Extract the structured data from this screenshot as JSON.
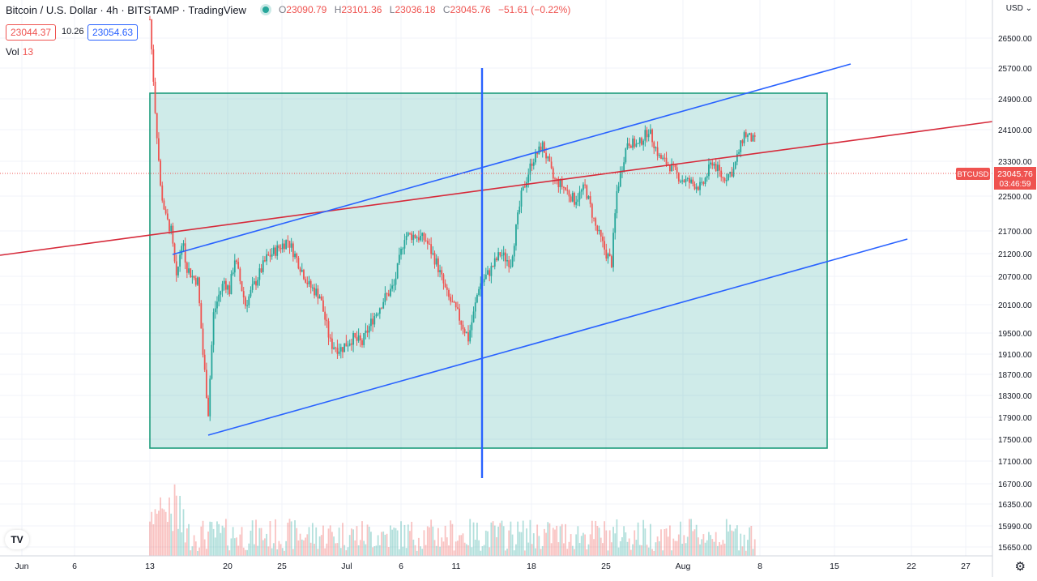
{
  "header": {
    "symbol": "Bitcoin / U.S. Dollar · 4h · BITSTAMP · TradingView",
    "o_label": "O",
    "o": "23090.79",
    "h_label": "H",
    "h": "23101.36",
    "l_label": "L",
    "l": "23036.18",
    "c_label": "C",
    "c": "23045.76",
    "change": "−51.61 (−0.22%)"
  },
  "bid": "23044.37",
  "spread": "10.26",
  "ask": "23054.63",
  "volume": {
    "label": "Vol",
    "value": "13"
  },
  "currency": "USD",
  "logo": "TV",
  "settings_icon": "gear-icon",
  "colors": {
    "up": "#26a69a",
    "down": "#ef5350",
    "rect_fill": "rgba(38,166,154,0.22)",
    "rect_stroke": "#1e9c7c",
    "trend_blue": "#2962ff",
    "trend_red": "#d62a3a",
    "grid": "#f0f3fa"
  },
  "chart_data": {
    "type": "candlestick",
    "symbol_tag": "BTCUSD",
    "last_price": 23045.76,
    "last_price_label": "23045.76",
    "countdown": "03:46:59",
    "x_ticks": [
      "Jun",
      "6",
      "13",
      "20",
      "25",
      "Jul",
      "6",
      "11",
      "18",
      "25",
      "Aug",
      "8",
      "15",
      "22",
      "27"
    ],
    "y_ticks": [
      "26500.00",
      "25700.00",
      "24900.00",
      "24100.00",
      "23300.00",
      "22500.00",
      "21700.00",
      "21200.00",
      "20700.00",
      "20100.00",
      "19500.00",
      "19100.00",
      "18700.00",
      "18300.00",
      "17900.00",
      "17500.00",
      "17100.00",
      "16700.00",
      "16350.00",
      "15990.00",
      "15650.00"
    ],
    "close_path": [
      [
        "2022-06-13",
        27000
      ],
      [
        "2022-06-13",
        24600
      ],
      [
        "2022-06-14",
        22700
      ],
      [
        "2022-06-14",
        22000
      ],
      [
        "2022-06-15",
        21700
      ],
      [
        "2022-06-15",
        20600
      ],
      [
        "2022-06-16",
        21500
      ],
      [
        "2022-06-16",
        20900
      ],
      [
        "2022-06-17",
        20700
      ],
      [
        "2022-06-17",
        20600
      ],
      [
        "2022-06-18",
        19100
      ],
      [
        "2022-06-18",
        18000
      ],
      [
        "2022-06-19",
        19900
      ],
      [
        "2022-06-19",
        20300
      ],
      [
        "2022-06-20",
        20600
      ],
      [
        "2022-06-20",
        20400
      ],
      [
        "2022-06-21",
        21100
      ],
      [
        "2022-06-22",
        20100
      ],
      [
        "2022-06-23",
        20600
      ],
      [
        "2022-06-24",
        21100
      ],
      [
        "2022-06-25",
        21300
      ],
      [
        "2022-06-26",
        21500
      ],
      [
        "2022-06-27",
        21000
      ],
      [
        "2022-06-28",
        20500
      ],
      [
        "2022-06-29",
        20300
      ],
      [
        "2022-06-30",
        19300
      ],
      [
        "2022-07-01",
        19200
      ],
      [
        "2022-07-02",
        19400
      ],
      [
        "2022-07-03",
        19300
      ],
      [
        "2022-07-04",
        19800
      ],
      [
        "2022-07-05",
        20200
      ],
      [
        "2022-07-06",
        20500
      ],
      [
        "2022-07-07",
        21600
      ],
      [
        "2022-07-08",
        21600
      ],
      [
        "2022-07-09",
        21500
      ],
      [
        "2022-07-10",
        21000
      ],
      [
        "2022-07-11",
        20300
      ],
      [
        "2022-07-12",
        19900
      ],
      [
        "2022-07-13",
        19400
      ],
      [
        "2022-07-13",
        19900
      ],
      [
        "2022-07-14",
        20500
      ],
      [
        "2022-07-15",
        20800
      ],
      [
        "2022-07-16",
        21200
      ],
      [
        "2022-07-17",
        21000
      ],
      [
        "2022-07-18",
        22500
      ],
      [
        "2022-07-19",
        23300
      ],
      [
        "2022-07-20",
        23700
      ],
      [
        "2022-07-21",
        22900
      ],
      [
        "2022-07-22",
        22700
      ],
      [
        "2022-07-23",
        22400
      ],
      [
        "2022-07-24",
        22700
      ],
      [
        "2022-07-25",
        21800
      ],
      [
        "2022-07-26",
        21200
      ],
      [
        "2022-07-26",
        21000
      ],
      [
        "2022-07-27",
        22600
      ],
      [
        "2022-07-28",
        23800
      ],
      [
        "2022-07-29",
        23700
      ],
      [
        "2022-07-30",
        24100
      ],
      [
        "2022-07-31",
        23400
      ],
      [
        "2022-08-01",
        23200
      ],
      [
        "2022-08-02",
        22900
      ],
      [
        "2022-08-03",
        22800
      ],
      [
        "2022-08-04",
        22700
      ],
      [
        "2022-08-05",
        23300
      ],
      [
        "2022-08-06",
        22900
      ],
      [
        "2022-08-07",
        23100
      ],
      [
        "2022-08-08",
        24000
      ],
      [
        "2022-08-09",
        23800
      ],
      [
        "2022-08-09",
        23045
      ]
    ],
    "annotations": [
      {
        "type": "rectangle",
        "from": "2022-06-13",
        "to": "2022-08-16",
        "y_top": 24950,
        "y_bottom": 17400
      },
      {
        "type": "vertical_line",
        "x": "2022-07-13"
      },
      {
        "type": "trend_line",
        "color": "blue",
        "from": [
          "2022-06-15",
          21150
        ],
        "to": [
          "2022-08-16",
          25550
        ]
      },
      {
        "type": "trend_line",
        "color": "blue",
        "from": [
          "2022-06-19",
          17550
        ],
        "to": [
          "2022-08-21",
          21500
        ]
      },
      {
        "type": "trend_line",
        "color": "red",
        "extends": "both"
      }
    ]
  }
}
